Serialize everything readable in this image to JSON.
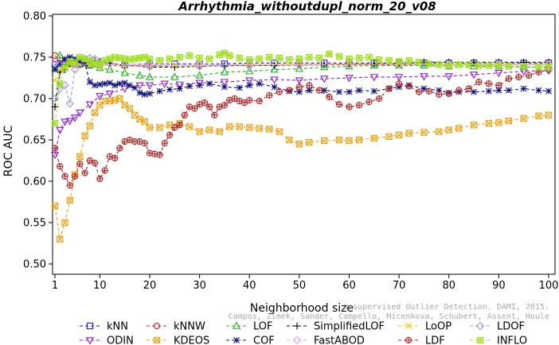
{
  "chart_data": {
    "type": "line",
    "title": "Arrhythmia_withoutdupl_norm_20_v08",
    "xlabel": "Neighborhood size",
    "ylabel": "ROC AUC",
    "xlim": [
      1,
      100
    ],
    "ylim": [
      0.5,
      0.8
    ],
    "x_ticks": [
      "1",
      "10",
      "20",
      "30",
      "40",
      "50",
      "60",
      "70",
      "80",
      "90",
      "100"
    ],
    "y_ticks": [
      "0.50",
      "0.55",
      "0.60",
      "0.65",
      "0.70",
      "0.75",
      "0.80"
    ],
    "grid": false,
    "legend_position": "bottom",
    "watermark_lines": [
      "Unsupervised Outlier Detection. DAMI, 2015.",
      "Campos, Zimek, Sander, Campello, Micenkova, Schubert, Assent, Houle"
    ],
    "series": [
      {
        "name": "kNN",
        "color": "#1a1adb",
        "marker": "square",
        "x": [
          1,
          2,
          3,
          4,
          5,
          6,
          8,
          10,
          15,
          20,
          25,
          30,
          35,
          40,
          45,
          50,
          55,
          60,
          65,
          70,
          75,
          80,
          85,
          90,
          95,
          100
        ],
        "values": [
          0.741,
          0.742,
          0.742,
          0.743,
          0.742,
          0.742,
          0.741,
          0.742,
          0.741,
          0.742,
          0.742,
          0.742,
          0.742,
          0.743,
          0.743,
          0.743,
          0.743,
          0.743,
          0.743,
          0.743,
          0.743,
          0.743,
          0.743,
          0.743,
          0.743,
          0.743
        ]
      },
      {
        "name": "kNNW",
        "color": "#d62020",
        "marker": "circle",
        "x": [
          1,
          2,
          3,
          4,
          5,
          6,
          8,
          10,
          15,
          20,
          30,
          40,
          50,
          60,
          70,
          80,
          90,
          100
        ],
        "values": [
          0.752,
          0.746,
          0.744,
          0.742,
          0.741,
          0.741,
          0.74,
          0.74,
          0.74,
          0.74,
          0.74,
          0.74,
          0.741,
          0.741,
          0.741,
          0.741,
          0.741,
          0.741
        ]
      },
      {
        "name": "LOF",
        "color": "#1db31d",
        "marker": "triangle-up",
        "x": [
          1,
          2,
          3,
          4,
          5,
          6,
          8,
          10,
          12,
          15,
          18,
          20,
          25,
          30,
          35,
          40,
          45,
          50,
          55,
          60,
          65,
          70,
          75,
          80,
          85,
          90,
          95,
          100
        ],
        "values": [
          0.737,
          0.752,
          0.745,
          0.744,
          0.743,
          0.742,
          0.74,
          0.737,
          0.735,
          0.731,
          0.728,
          0.726,
          0.726,
          0.728,
          0.732,
          0.733,
          0.735,
          0.736,
          0.738,
          0.739,
          0.74,
          0.74,
          0.74,
          0.739,
          0.739,
          0.739,
          0.738,
          0.738
        ]
      },
      {
        "name": "SimplifiedLOF",
        "color": "#000000",
        "marker": "plus",
        "x": [
          1,
          2,
          3,
          4,
          5,
          6,
          7,
          8,
          9,
          10,
          12,
          15,
          20,
          25,
          30,
          35,
          40,
          45,
          50,
          55,
          60,
          65,
          70,
          75,
          80,
          85,
          90,
          95,
          100
        ],
        "values": [
          0.69,
          0.732,
          0.735,
          0.742,
          0.746,
          0.748,
          0.747,
          0.746,
          0.746,
          0.745,
          0.743,
          0.74,
          0.738,
          0.738,
          0.739,
          0.74,
          0.74,
          0.74,
          0.741,
          0.741,
          0.742,
          0.742,
          0.743,
          0.744,
          0.744,
          0.744,
          0.744,
          0.744,
          0.744
        ]
      },
      {
        "name": "LoOP",
        "color": "#e0d000",
        "marker": "cross",
        "x": [
          1,
          2,
          3,
          4,
          5,
          6,
          8,
          10,
          15,
          20,
          25,
          30,
          40,
          50,
          60,
          70,
          80,
          90,
          100
        ],
        "values": [
          0.722,
          0.735,
          0.738,
          0.741,
          0.742,
          0.742,
          0.741,
          0.74,
          0.739,
          0.739,
          0.74,
          0.74,
          0.741,
          0.741,
          0.742,
          0.742,
          0.741,
          0.741,
          0.741
        ]
      },
      {
        "name": "LDOF",
        "color": "#9a9ad8",
        "marker": "diamond",
        "x": [
          1,
          2,
          3,
          4,
          5,
          6,
          7,
          8,
          9,
          10,
          12,
          15,
          20,
          30,
          40,
          50,
          60,
          70,
          80,
          90,
          100
        ],
        "values": [
          0.7,
          0.712,
          0.716,
          0.694,
          0.735,
          0.744,
          0.748,
          0.749,
          0.748,
          0.745,
          0.742,
          0.74,
          0.739,
          0.739,
          0.74,
          0.74,
          0.741,
          0.741,
          0.741,
          0.741,
          0.741
        ]
      },
      {
        "name": "ODIN",
        "color": "#8a1ad6",
        "marker": "triangle-down",
        "x": [
          1,
          2,
          3,
          4,
          5,
          6,
          8,
          10,
          12,
          15,
          18,
          20,
          23,
          26,
          30,
          35,
          40,
          45,
          50,
          55,
          60,
          65,
          70,
          75,
          80,
          85,
          90,
          95,
          100
        ],
        "values": [
          0.632,
          0.662,
          0.672,
          0.673,
          0.677,
          0.683,
          0.693,
          0.703,
          0.706,
          0.712,
          0.716,
          0.716,
          0.718,
          0.717,
          0.719,
          0.72,
          0.722,
          0.723,
          0.722,
          0.724,
          0.725,
          0.726,
          0.726,
          0.727,
          0.727,
          0.729,
          0.731,
          0.733,
          0.734
        ]
      },
      {
        "name": "KDEOS",
        "color": "#f2a010",
        "marker": "square-x",
        "x": [
          1,
          2,
          3,
          4,
          5,
          6,
          7,
          8,
          9,
          10,
          11,
          12,
          13,
          14,
          15,
          16,
          17,
          18,
          19,
          20,
          22,
          24,
          26,
          28,
          30,
          32,
          34,
          36,
          38,
          40,
          42,
          44,
          46,
          48,
          50,
          52,
          55,
          58,
          60,
          62,
          65,
          68,
          70,
          72,
          75,
          78,
          80,
          82,
          85,
          88,
          90,
          92,
          95,
          98,
          100
        ],
        "values": [
          0.57,
          0.53,
          0.55,
          0.577,
          0.608,
          0.63,
          0.655,
          0.667,
          0.683,
          0.692,
          0.697,
          0.697,
          0.698,
          0.7,
          0.692,
          0.688,
          0.68,
          0.675,
          0.672,
          0.665,
          0.665,
          0.668,
          0.67,
          0.666,
          0.66,
          0.662,
          0.66,
          0.666,
          0.666,
          0.665,
          0.664,
          0.663,
          0.66,
          0.65,
          0.645,
          0.647,
          0.649,
          0.65,
          0.649,
          0.65,
          0.652,
          0.654,
          0.656,
          0.658,
          0.659,
          0.66,
          0.662,
          0.664,
          0.668,
          0.67,
          0.671,
          0.673,
          0.676,
          0.679,
          0.68
        ]
      },
      {
        "name": "COF",
        "color": "#101080",
        "marker": "asterisk",
        "x": [
          1,
          2,
          3,
          4,
          5,
          6,
          7,
          8,
          9,
          10,
          11,
          12,
          13,
          14,
          15,
          16,
          17,
          18,
          19,
          20,
          22,
          24,
          26,
          28,
          30,
          32,
          35,
          38,
          40,
          42,
          45,
          48,
          50,
          52,
          55,
          58,
          60,
          62,
          65,
          68,
          70,
          72,
          75,
          78,
          80,
          82,
          85,
          88,
          90,
          92,
          95,
          98,
          100
        ],
        "values": [
          0.735,
          0.742,
          0.748,
          0.75,
          0.748,
          0.745,
          0.742,
          0.72,
          0.716,
          0.717,
          0.718,
          0.719,
          0.716,
          0.718,
          0.719,
          0.716,
          0.713,
          0.707,
          0.705,
          0.706,
          0.709,
          0.711,
          0.712,
          0.715,
          0.716,
          0.718,
          0.714,
          0.713,
          0.716,
          0.718,
          0.714,
          0.709,
          0.708,
          0.71,
          0.71,
          0.708,
          0.708,
          0.71,
          0.709,
          0.712,
          0.714,
          0.716,
          0.712,
          0.71,
          0.707,
          0.708,
          0.708,
          0.709,
          0.71,
          0.71,
          0.712,
          0.71,
          0.709
        ]
      },
      {
        "name": "FastABOD",
        "color": "#f0a0f0",
        "marker": "diamond",
        "x": [
          1,
          5,
          10,
          20,
          30,
          40,
          50,
          60,
          70,
          80,
          90,
          100
        ],
        "values": [
          0.743,
          0.742,
          0.741,
          0.741,
          0.741,
          0.741,
          0.741,
          0.741,
          0.741,
          0.741,
          0.741,
          0.741
        ]
      },
      {
        "name": "LDF",
        "color": "#b02828",
        "marker": "circle-plus",
        "x": [
          1,
          2,
          3,
          4,
          5,
          6,
          7,
          8,
          9,
          10,
          11,
          12,
          13,
          14,
          15,
          16,
          17,
          18,
          19,
          20,
          21,
          22,
          23,
          24,
          25,
          26,
          27,
          28,
          29,
          30,
          31,
          32,
          33,
          34,
          35,
          36,
          37,
          38,
          39,
          40,
          42,
          44,
          46,
          48,
          50,
          52,
          54,
          56,
          58,
          60,
          62,
          64,
          66,
          68,
          70,
          72,
          74,
          76,
          78,
          80,
          82,
          84,
          86,
          88,
          90,
          92,
          94,
          96,
          98,
          100
        ],
        "values": [
          0.64,
          0.618,
          0.606,
          0.595,
          0.606,
          0.621,
          0.61,
          0.625,
          0.622,
          0.603,
          0.613,
          0.63,
          0.628,
          0.64,
          0.648,
          0.65,
          0.648,
          0.648,
          0.646,
          0.634,
          0.633,
          0.632,
          0.646,
          0.656,
          0.665,
          0.668,
          0.68,
          0.69,
          0.688,
          0.693,
          0.695,
          0.69,
          0.68,
          0.69,
          0.692,
          0.698,
          0.7,
          0.697,
          0.695,
          0.698,
          0.697,
          0.704,
          0.708,
          0.71,
          0.714,
          0.716,
          0.71,
          0.702,
          0.693,
          0.69,
          0.692,
          0.696,
          0.7,
          0.712,
          0.718,
          0.715,
          0.708,
          0.709,
          0.705,
          0.706,
          0.71,
          0.712,
          0.72,
          0.718,
          0.716,
          0.724,
          0.726,
          0.728,
          0.732,
          0.735
        ]
      },
      {
        "name": "INFLO",
        "color": "#a0e020",
        "marker": "star-box",
        "x": [
          1,
          2,
          3,
          4,
          5,
          6,
          7,
          8,
          9,
          10,
          11,
          12,
          13,
          14,
          15,
          16,
          17,
          18,
          19,
          20,
          22,
          24,
          26,
          28,
          30,
          32,
          34,
          35,
          36,
          38,
          40,
          42,
          44,
          46,
          48,
          50,
          52,
          54,
          56,
          58,
          60,
          62,
          64,
          66,
          68,
          70,
          72,
          74,
          76,
          78,
          80,
          82,
          84,
          86,
          88,
          90,
          92,
          95,
          98,
          100
        ],
        "values": [
          0.67,
          0.718,
          0.737,
          0.745,
          0.744,
          0.75,
          0.748,
          0.745,
          0.743,
          0.742,
          0.746,
          0.748,
          0.75,
          0.749,
          0.748,
          0.747,
          0.748,
          0.749,
          0.75,
          0.748,
          0.746,
          0.748,
          0.75,
          0.752,
          0.749,
          0.748,
          0.753,
          0.755,
          0.752,
          0.749,
          0.747,
          0.748,
          0.75,
          0.749,
          0.747,
          0.748,
          0.75,
          0.749,
          0.754,
          0.751,
          0.748,
          0.749,
          0.75,
          0.747,
          0.746,
          0.745,
          0.746,
          0.744,
          0.742,
          0.741,
          0.74,
          0.741,
          0.741,
          0.74,
          0.74,
          0.74,
          0.739,
          0.739,
          0.738,
          0.738
        ]
      }
    ]
  }
}
